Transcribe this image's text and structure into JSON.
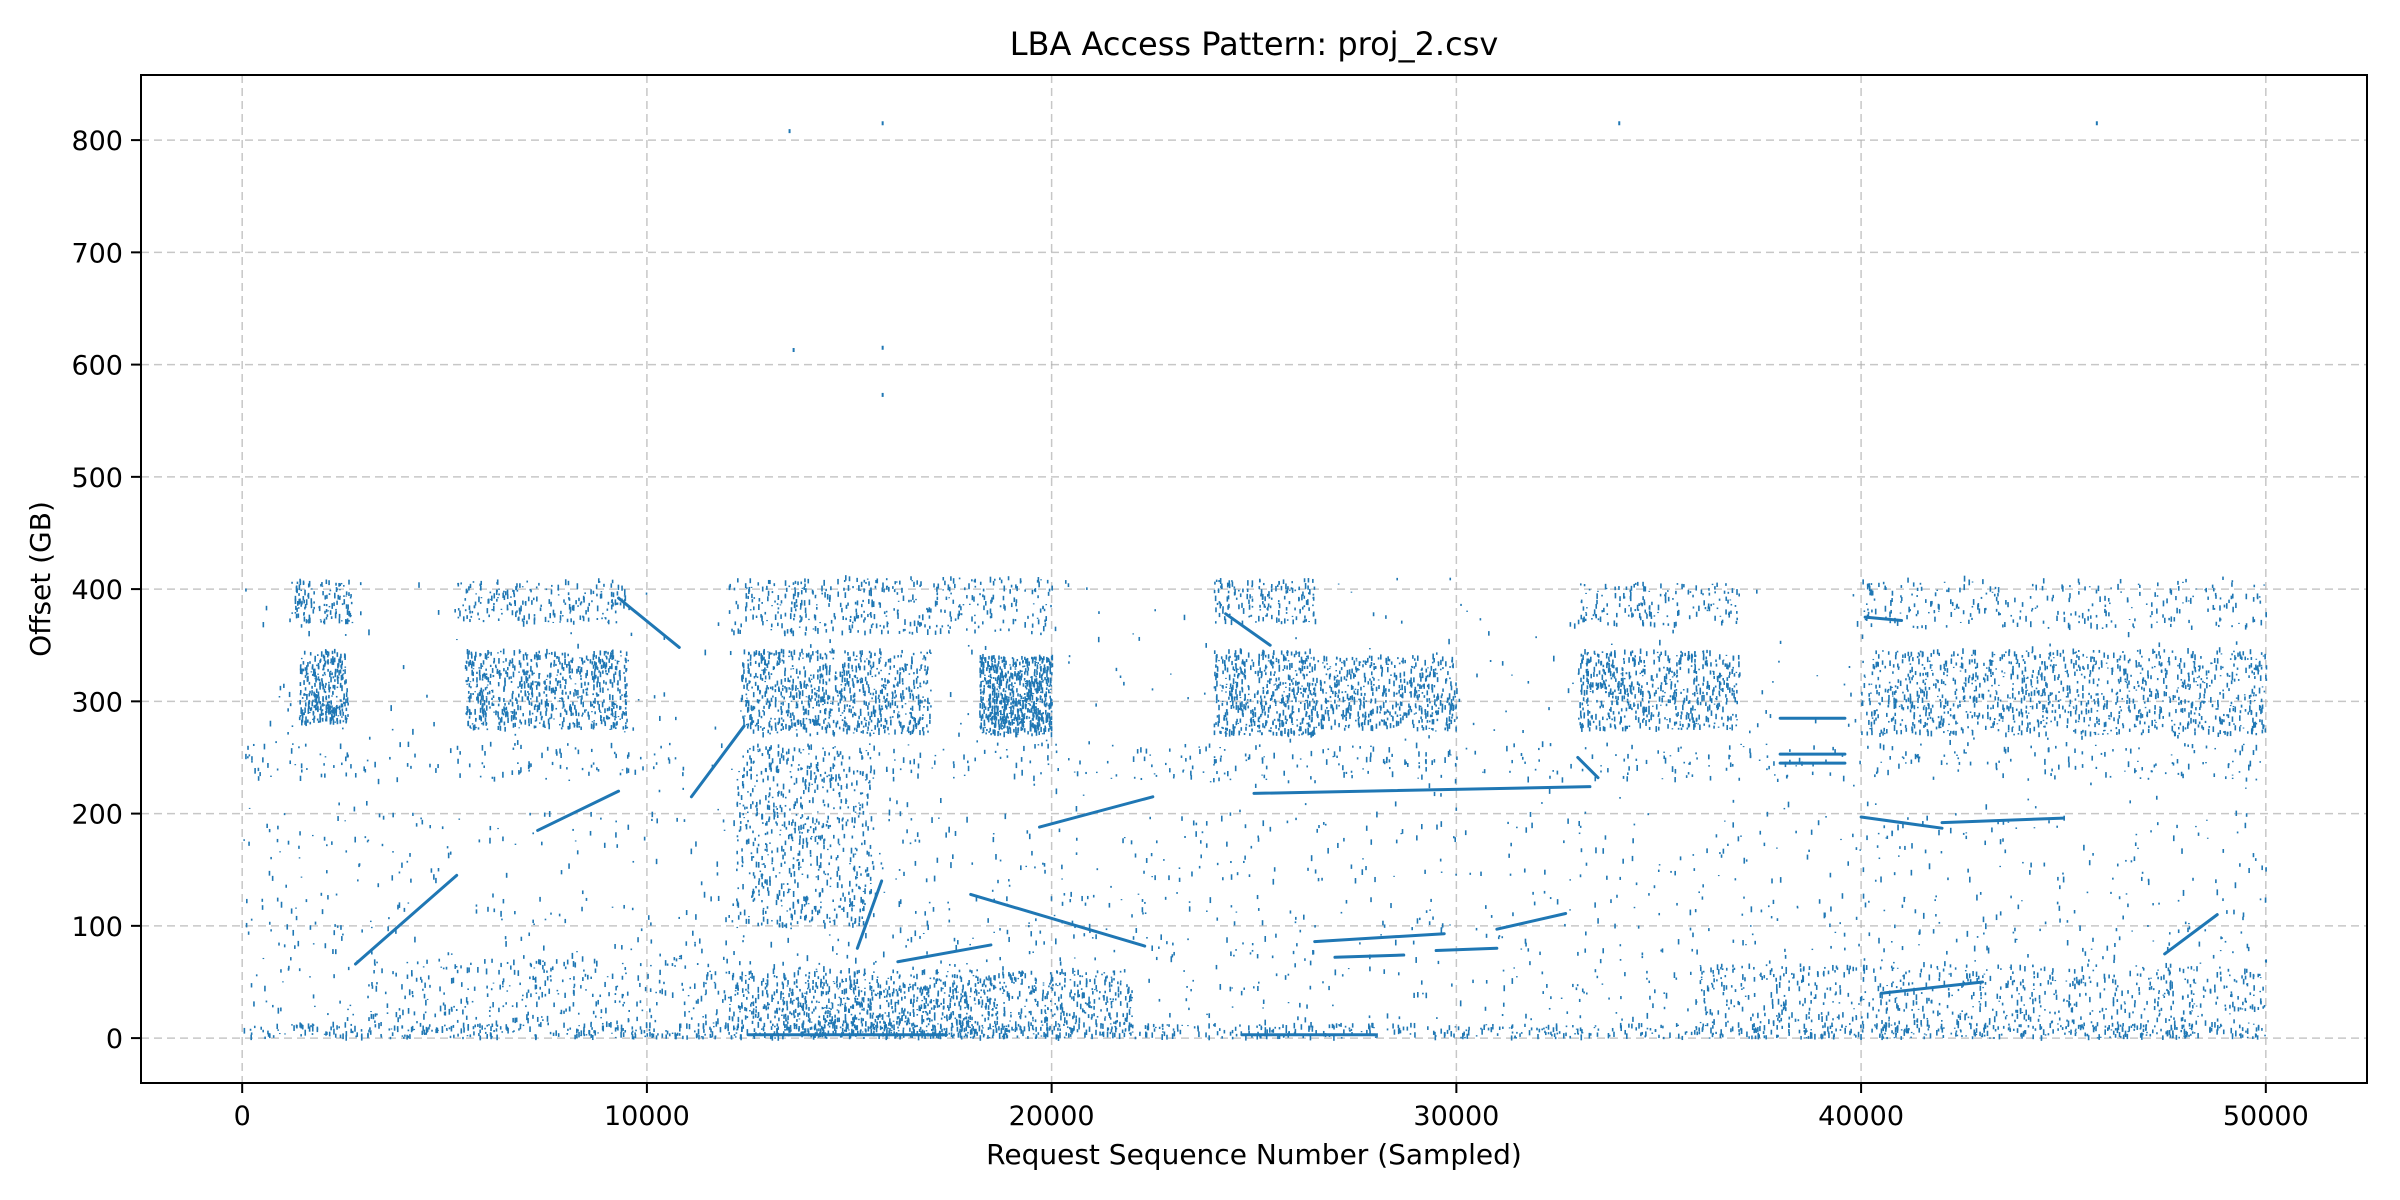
{
  "chart_data": {
    "type": "scatter",
    "title": "LBA Access Pattern: proj_2.csv",
    "xlabel": "Request Sequence Number (Sampled)",
    "ylabel": "Offset (GB)",
    "xlim": [
      -2500,
      52500
    ],
    "ylim": [
      -40,
      858
    ],
    "xticks": [
      0,
      10000,
      20000,
      30000,
      40000,
      50000
    ],
    "yticks": [
      0,
      100,
      200,
      300,
      400,
      500,
      600,
      700,
      800
    ],
    "grid": true,
    "grid_style": "dashed",
    "legend": "none",
    "color": "#1f77b4",
    "series": [
      {
        "segments": [
          [
            [
              2800,
              66
            ],
            [
              5300,
              145
            ]
          ],
          [
            [
              7300,
              185
            ],
            [
              9300,
              220
            ]
          ],
          [
            [
              11100,
              215
            ],
            [
              12400,
              278
            ]
          ],
          [
            [
              9300,
              392
            ],
            [
              10800,
              348
            ]
          ],
          [
            [
              12500,
              3
            ],
            [
              17400,
              3
            ]
          ],
          [
            [
              15200,
              80
            ],
            [
              15800,
              140
            ]
          ],
          [
            [
              16200,
              68
            ],
            [
              18500,
              83
            ]
          ],
          [
            [
              18000,
              128
            ],
            [
              22300,
              82
            ]
          ],
          [
            [
              19700,
              188
            ],
            [
              22500,
              215
            ]
          ],
          [
            [
              24300,
              378
            ],
            [
              25400,
              350
            ]
          ],
          [
            [
              24700,
              3
            ],
            [
              28000,
              3
            ]
          ],
          [
            [
              25000,
              218
            ],
            [
              33300,
              224
            ]
          ],
          [
            [
              26500,
              86
            ],
            [
              29700,
              93
            ]
          ],
          [
            [
              27000,
              72
            ],
            [
              28700,
              74
            ]
          ],
          [
            [
              29500,
              78
            ],
            [
              31000,
              80
            ]
          ],
          [
            [
              31000,
              97
            ],
            [
              32700,
              111
            ]
          ],
          [
            [
              33000,
              250
            ],
            [
              33500,
              232
            ]
          ],
          [
            [
              38000,
              285
            ],
            [
              39600,
              285
            ]
          ],
          [
            [
              38000,
              253
            ],
            [
              39600,
              253
            ]
          ],
          [
            [
              38000,
              245
            ],
            [
              39600,
              245
            ]
          ],
          [
            [
              40000,
              197
            ],
            [
              42000,
              187
            ]
          ],
          [
            [
              40100,
              375
            ],
            [
              41000,
              372
            ]
          ],
          [
            [
              40500,
              40
            ],
            [
              43000,
              50
            ]
          ],
          [
            [
              42000,
              192
            ],
            [
              45000,
              196
            ]
          ],
          [
            [
              47500,
              75
            ],
            [
              48800,
              110
            ]
          ]
        ],
        "clusters": [
          [
            0,
            50000,
            0,
            12,
            900
          ],
          [
            12000,
            22000,
            0,
            60,
            900
          ],
          [
            36000,
            50000,
            0,
            65,
            700
          ],
          [
            1400,
            2600,
            280,
            345,
            300
          ],
          [
            5500,
            9500,
            275,
            345,
            700
          ],
          [
            12300,
            17000,
            270,
            345,
            800
          ],
          [
            18200,
            20000,
            270,
            340,
            700
          ],
          [
            24000,
            26500,
            270,
            345,
            500
          ],
          [
            26500,
            30000,
            275,
            340,
            500
          ],
          [
            33000,
            37000,
            275,
            345,
            600
          ],
          [
            40000,
            50000,
            270,
            345,
            1100
          ],
          [
            1200,
            2700,
            370,
            408,
            120
          ],
          [
            5200,
            9500,
            370,
            408,
            200
          ],
          [
            12000,
            20000,
            360,
            410,
            400
          ],
          [
            24000,
            26500,
            370,
            408,
            150
          ],
          [
            33000,
            37000,
            368,
            405,
            150
          ],
          [
            40000,
            50000,
            365,
            408,
            250
          ],
          [
            12200,
            15600,
            100,
            260,
            600
          ],
          [
            0,
            50000,
            230,
            262,
            500
          ],
          [
            0,
            50000,
            140,
            200,
            300
          ],
          [
            0,
            50000,
            15,
            130,
            700
          ],
          [
            3000,
            12000,
            0,
            70,
            300
          ],
          [
            13000,
            19000,
            0,
            50,
            300
          ],
          [
            0,
            50000,
            0,
            410,
            800
          ]
        ],
        "outliers": [
          [
            13500,
            808
          ],
          [
            15800,
            815
          ],
          [
            34000,
            815
          ],
          [
            45800,
            815
          ],
          [
            13600,
            613
          ],
          [
            15800,
            615
          ],
          [
            15800,
            573
          ]
        ]
      }
    ]
  }
}
